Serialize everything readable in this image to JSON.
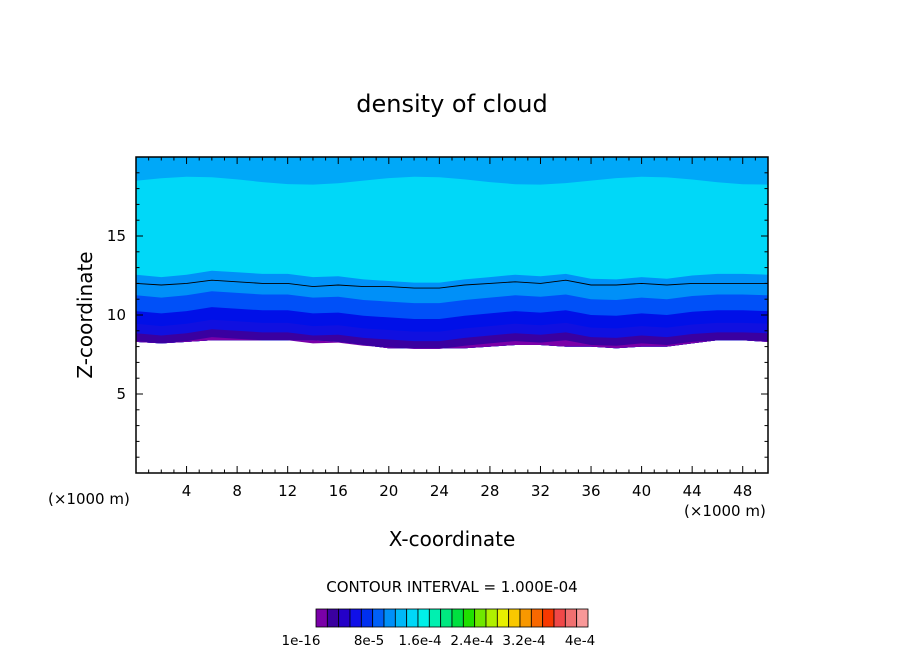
{
  "chart_data": {
    "type": "heatmap",
    "title": "density of cloud",
    "xlabel": "X-coordinate",
    "ylabel": "Z-coordinate",
    "x_unit_left": "(×1000 m)",
    "x_unit_right": "(×1000 m)",
    "xlim": [
      0,
      50
    ],
    "ylim": [
      0,
      20
    ],
    "xticks": [
      4,
      8,
      12,
      16,
      20,
      24,
      28,
      32,
      36,
      40,
      44,
      48
    ],
    "yticks": [
      5,
      10,
      15
    ],
    "contour_interval_text": "CONTOUR INTERVAL = 1.000E-04",
    "colorbar": {
      "colors": [
        "#7a00a8",
        "#3a00a0",
        "#2400c8",
        "#1010e8",
        "#0030f0",
        "#0060f8",
        "#0090f8",
        "#00b8f8",
        "#00d8f8",
        "#00f0e8",
        "#00f0b0",
        "#00e880",
        "#00e040",
        "#20e000",
        "#70e800",
        "#b0f000",
        "#e8f000",
        "#f8c800",
        "#f89800",
        "#f86800",
        "#f83800",
        "#f04848",
        "#f07070",
        "#f89898"
      ],
      "labels": [
        "1e-16",
        "8e-5",
        "1.6e-4",
        "2.4e-4",
        "3.2e-4",
        "4e-4"
      ]
    },
    "bands": [
      {
        "z_top": 8.3,
        "color": "#7a00a8"
      },
      {
        "z_top": 8.8,
        "color": "#3a00a0"
      },
      {
        "z_top": 9.4,
        "color": "#1010e0"
      },
      {
        "z_top": 10.2,
        "color": "#0010e8"
      },
      {
        "z_top": 11.2,
        "color": "#0050f8"
      },
      {
        "z_top": 12.5,
        "color": "#0090f8"
      },
      {
        "z_top": 18.5,
        "color": "#00d8f8"
      },
      {
        "z_top": 20.0,
        "color": "#00a8f8"
      }
    ],
    "contour_line": {
      "x": [
        0,
        2,
        4,
        6,
        8,
        10,
        12,
        14,
        16,
        18,
        20,
        22,
        24,
        26,
        28,
        30,
        32,
        34,
        36,
        38,
        40,
        42,
        44,
        46,
        48,
        50
      ],
      "z": [
        12.0,
        11.9,
        12.0,
        12.2,
        12.1,
        12.0,
        12.0,
        11.8,
        11.9,
        11.8,
        11.8,
        11.7,
        11.7,
        11.9,
        12.0,
        12.1,
        12.0,
        12.2,
        11.9,
        11.9,
        12.0,
        11.9,
        12.0,
        12.0,
        12.0,
        12.0
      ]
    },
    "cloud_base": {
      "x": [
        0,
        2,
        4,
        6,
        8,
        10,
        12,
        14,
        16,
        18,
        20,
        22,
        24,
        26,
        28,
        30,
        32,
        34,
        36,
        38,
        40,
        42,
        44,
        46,
        48,
        50
      ],
      "z": [
        8.3,
        8.2,
        8.3,
        8.4,
        8.4,
        8.4,
        8.4,
        8.4,
        8.3,
        8.1,
        7.9,
        7.9,
        7.9,
        7.9,
        8.0,
        8.1,
        8.1,
        8.0,
        8.0,
        7.9,
        8.0,
        8.0,
        8.2,
        8.4,
        8.4,
        8.3
      ]
    }
  }
}
